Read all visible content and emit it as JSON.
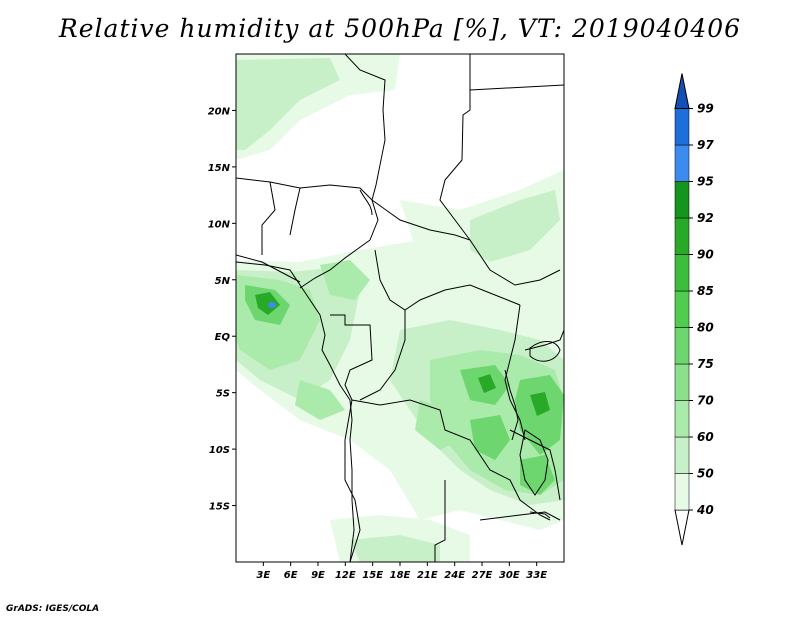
{
  "title": "Relative humidity at 500hPa [%], VT: 2019040406",
  "credit": "GrADS: IGES/COLA",
  "map": {
    "lon_range": [
      0,
      36
    ],
    "lat_range": [
      -20,
      25
    ],
    "lat_ticks": [
      {
        "value": 20,
        "label": "20N"
      },
      {
        "value": 15,
        "label": "15N"
      },
      {
        "value": 10,
        "label": "10N"
      },
      {
        "value": 5,
        "label": "5N"
      },
      {
        "value": 0,
        "label": "EQ"
      },
      {
        "value": -5,
        "label": "5S"
      },
      {
        "value": -10,
        "label": "10S"
      },
      {
        "value": -15,
        "label": "15S"
      }
    ],
    "lon_ticks": [
      {
        "value": 3,
        "label": "3E"
      },
      {
        "value": 6,
        "label": "6E"
      },
      {
        "value": 9,
        "label": "9E"
      },
      {
        "value": 12,
        "label": "12E"
      },
      {
        "value": 15,
        "label": "15E"
      },
      {
        "value": 18,
        "label": "18E"
      },
      {
        "value": 21,
        "label": "21E"
      },
      {
        "value": 24,
        "label": "24E"
      },
      {
        "value": 27,
        "label": "27E"
      },
      {
        "value": 30,
        "label": "30E"
      },
      {
        "value": 33,
        "label": "33E"
      }
    ]
  },
  "colorbar": {
    "levels": [
      "40",
      "50",
      "60",
      "70",
      "75",
      "80",
      "85",
      "90",
      "92",
      "95",
      "97",
      "99"
    ],
    "colors": [
      "#ffffff",
      "#e6fae6",
      "#c8f0c8",
      "#aaeaaa",
      "#8ce08c",
      "#6ed66e",
      "#50cc50",
      "#3cbe3c",
      "#28aa28",
      "#14961e",
      "#3c8cf0",
      "#1e6edc",
      "#1450b4"
    ]
  }
}
